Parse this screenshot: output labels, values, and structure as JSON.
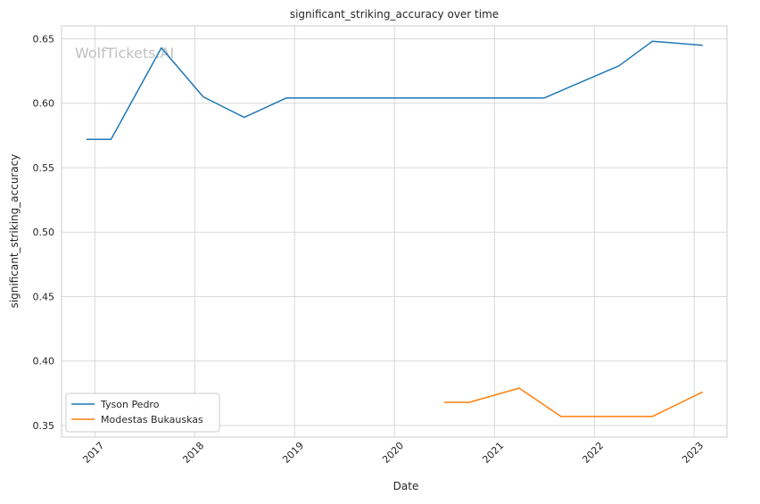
{
  "chart_data": {
    "type": "line",
    "title": "significant_striking_accuracy over time",
    "xlabel": "Date",
    "ylabel": "significant_striking_accuracy",
    "watermark": "WolfTickets.AI",
    "grid": true,
    "legend_position": "lower-left",
    "xlim": [
      "2016-09-01",
      "2023-05-01"
    ],
    "ylim": [
      0.341,
      0.66
    ],
    "x_ticks": [
      "2017",
      "2018",
      "2019",
      "2020",
      "2021",
      "2022",
      "2023"
    ],
    "y_ticks": [
      0.35,
      0.4,
      0.45,
      0.5,
      0.55,
      0.6,
      0.65
    ],
    "series": [
      {
        "name": "Tyson Pedro",
        "color": "#1f77b4",
        "points": [
          {
            "x": "2016-12-01",
            "y": 0.572
          },
          {
            "x": "2017-03-01",
            "y": 0.572
          },
          {
            "x": "2017-09-01",
            "y": 0.643
          },
          {
            "x": "2018-02-01",
            "y": 0.605
          },
          {
            "x": "2018-07-01",
            "y": 0.589
          },
          {
            "x": "2018-12-01",
            "y": 0.604
          },
          {
            "x": "2021-07-01",
            "y": 0.604
          },
          {
            "x": "2022-04-01",
            "y": 0.629
          },
          {
            "x": "2022-08-01",
            "y": 0.648
          },
          {
            "x": "2023-02-01",
            "y": 0.645
          }
        ]
      },
      {
        "name": "Modestas Bukauskas",
        "color": "#ff7f0e",
        "points": [
          {
            "x": "2020-07-01",
            "y": 0.368
          },
          {
            "x": "2020-10-01",
            "y": 0.368
          },
          {
            "x": "2021-04-01",
            "y": 0.379
          },
          {
            "x": "2021-09-01",
            "y": 0.357
          },
          {
            "x": "2022-08-01",
            "y": 0.357
          },
          {
            "x": "2023-02-01",
            "y": 0.376
          }
        ]
      }
    ]
  }
}
